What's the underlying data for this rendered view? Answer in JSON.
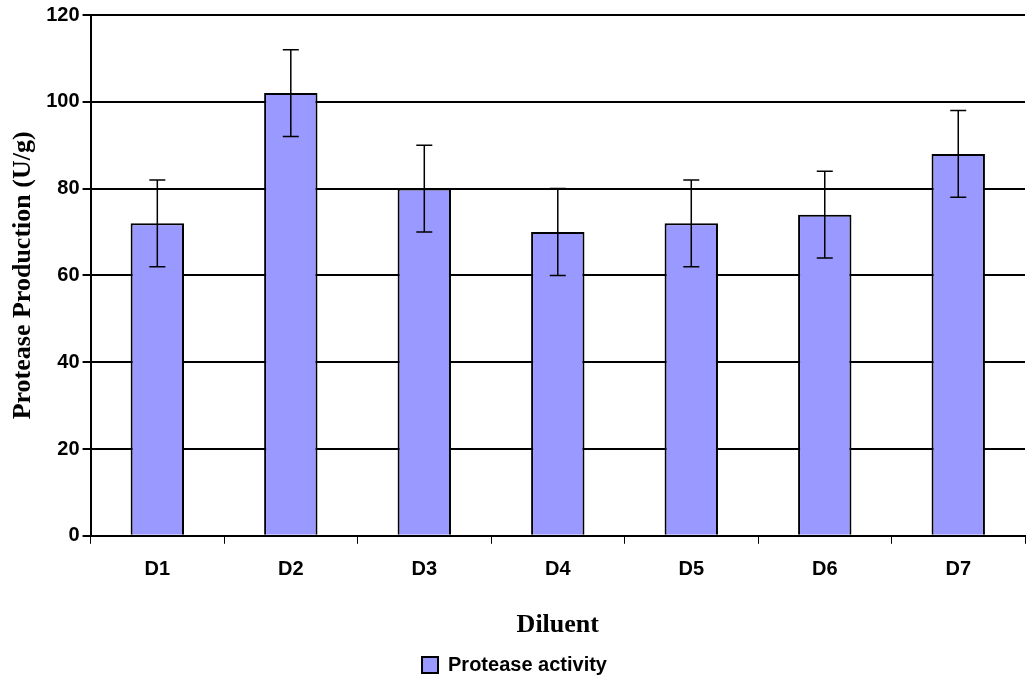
{
  "chart_data": {
    "type": "bar",
    "xlabel": "Diluent",
    "ylabel": "Protease Production (U/g)",
    "categories": [
      "D1",
      "D2",
      "D3",
      "D4",
      "D5",
      "D6",
      "D7"
    ],
    "series": [
      {
        "name": "Protease activity",
        "color": "#9999ff",
        "values": [
          72,
          102,
          80,
          70,
          72,
          74,
          88
        ],
        "errors": [
          10,
          10,
          10,
          10,
          10,
          10,
          10
        ]
      }
    ],
    "ylim": [
      0,
      120
    ],
    "yticks": [
      0,
      20,
      40,
      60,
      80,
      100,
      120
    ],
    "grid": "y",
    "legend": "bottom"
  }
}
